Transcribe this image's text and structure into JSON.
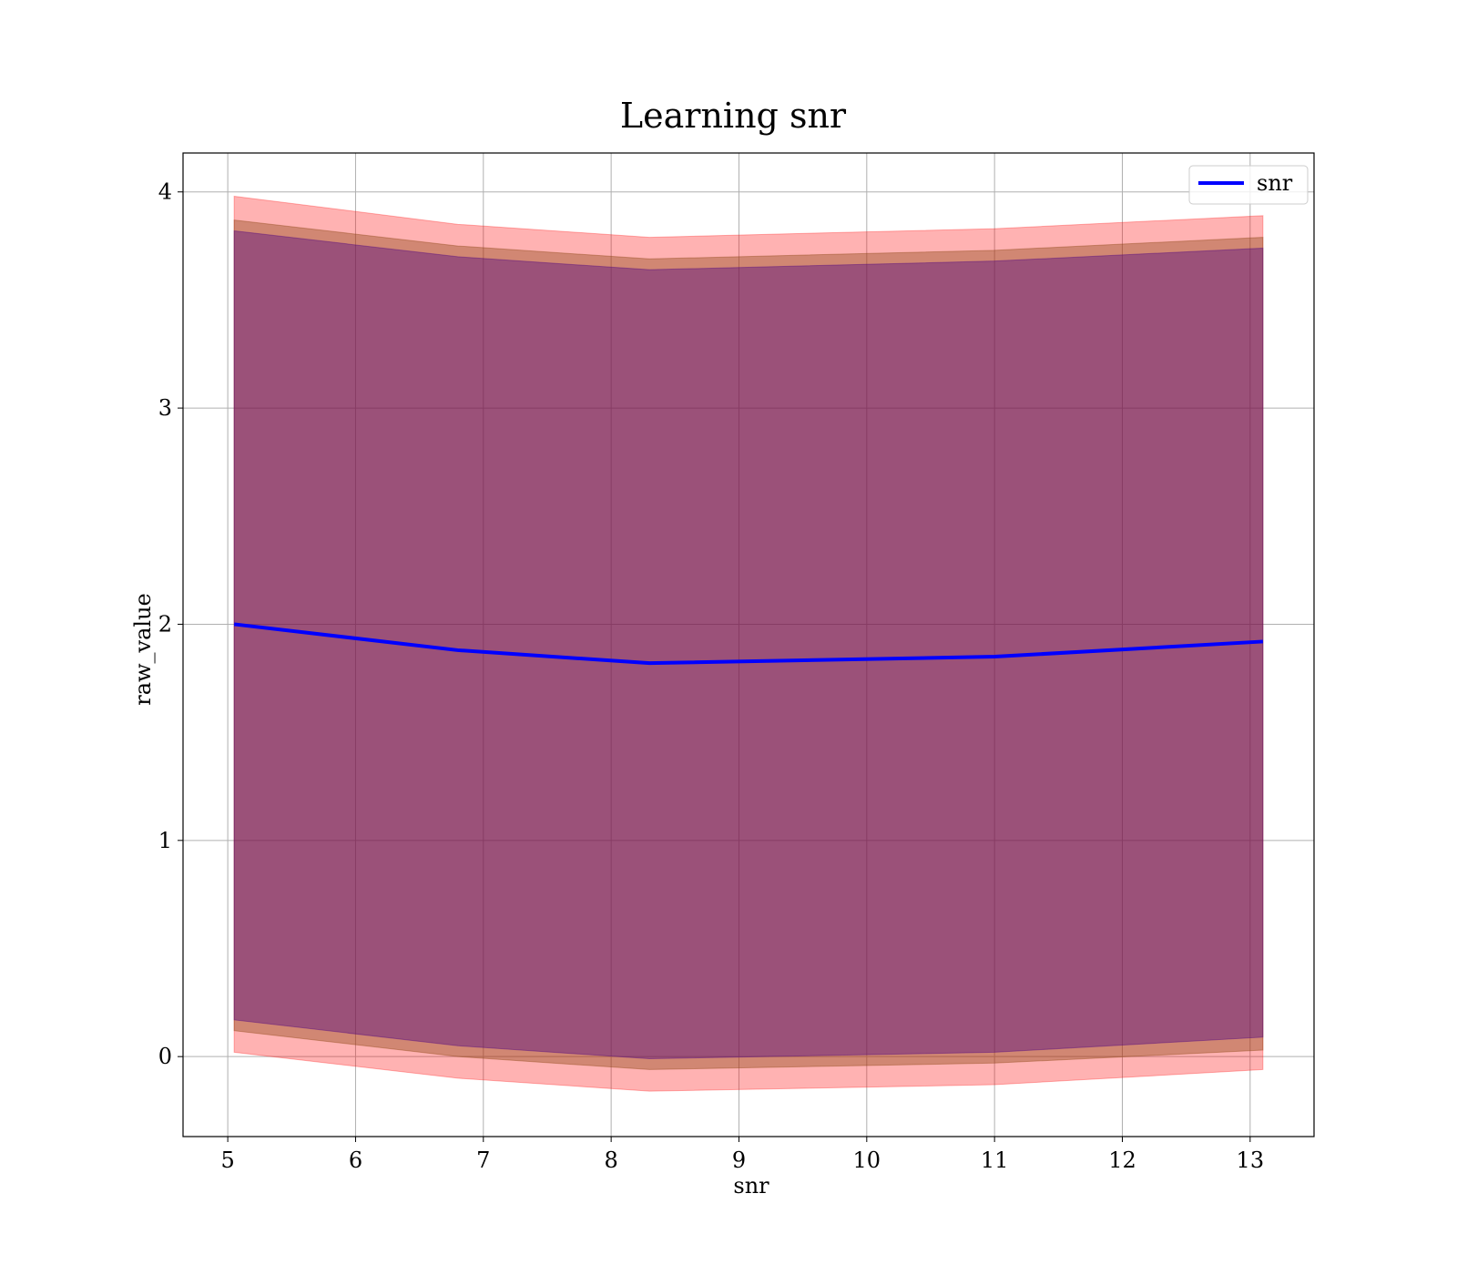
{
  "chart_data": {
    "type": "line",
    "title": "Learning snr",
    "xlabel": "snr",
    "ylabel": "raw_value",
    "xlim": [
      4.65,
      13.5
    ],
    "ylim": [
      -0.37,
      4.18
    ],
    "x_ticks": [
      5,
      6,
      7,
      8,
      9,
      10,
      11,
      12,
      13
    ],
    "x_tick_labels": [
      "5",
      "6",
      "7",
      "8",
      "9",
      "10",
      "11",
      "12",
      "13"
    ],
    "y_ticks": [
      0,
      1,
      2,
      3,
      4
    ],
    "y_tick_labels": [
      "0",
      "1",
      "2",
      "3",
      "4"
    ],
    "grid": true,
    "legend_position": "top-right",
    "x": [
      5.05,
      6.8,
      8.3,
      11.0,
      13.1
    ],
    "series": [
      {
        "name": "snr",
        "color": "#0000ff",
        "values": [
          2.0,
          1.88,
          1.82,
          1.85,
          1.92
        ]
      }
    ],
    "bands": [
      {
        "color": "#ff0000",
        "opacity": 0.3,
        "upper": [
          3.98,
          3.85,
          3.79,
          3.83,
          3.89
        ],
        "lower": [
          0.02,
          -0.1,
          -0.16,
          -0.13,
          -0.06
        ]
      },
      {
        "color": "#8b4513",
        "opacity": 0.4,
        "upper": [
          3.87,
          3.75,
          3.69,
          3.73,
          3.79
        ],
        "lower": [
          0.12,
          0.0,
          -0.06,
          -0.03,
          0.03
        ]
      },
      {
        "color": "#4b0082",
        "opacity": 0.4,
        "upper": [
          3.82,
          3.7,
          3.64,
          3.68,
          3.74
        ],
        "lower": [
          0.17,
          0.05,
          -0.01,
          0.02,
          0.09
        ]
      }
    ]
  }
}
